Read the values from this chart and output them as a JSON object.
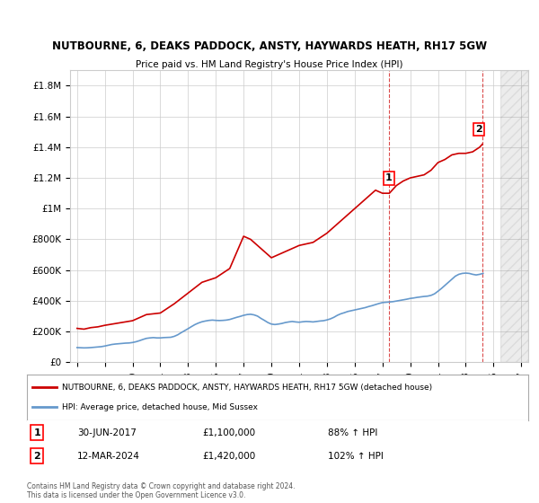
{
  "title1": "NUTBOURNE, 6, DEAKS PADDOCK, ANSTY, HAYWARDS HEATH, RH17 5GW",
  "title2": "Price paid vs. HM Land Registry's House Price Index (HPI)",
  "legend_line1": "NUTBOURNE, 6, DEAKS PADDOCK, ANSTY, HAYWARDS HEATH, RH17 5GW (detached house)",
  "legend_line2": "HPI: Average price, detached house, Mid Sussex",
  "annotation1_label": "1",
  "annotation1_date": "30-JUN-2017",
  "annotation1_value": "£1,100,000",
  "annotation1_pct": "88% ↑ HPI",
  "annotation1_year": 2017.5,
  "annotation1_price": 1100000,
  "annotation2_label": "2",
  "annotation2_date": "12-MAR-2024",
  "annotation2_value": "£1,420,000",
  "annotation2_pct": "102% ↑ HPI",
  "annotation2_year": 2024.2,
  "annotation2_price": 1420000,
  "footer1": "Contains HM Land Registry data © Crown copyright and database right 2024.",
  "footer2": "This data is licensed under the Open Government Licence v3.0.",
  "hpi_color": "#6699cc",
  "price_color": "#cc0000",
  "background_color": "#ffffff",
  "grid_color": "#cccccc",
  "annotation_line_color": "#cc0000",
  "ylim": [
    0,
    1900000
  ],
  "xlim_start": 1994.5,
  "xlim_end": 2027.5,
  "hpi_data": {
    "years": [
      1995,
      1995.25,
      1995.5,
      1995.75,
      1996,
      1996.25,
      1996.5,
      1996.75,
      1997,
      1997.25,
      1997.5,
      1997.75,
      1998,
      1998.25,
      1998.5,
      1998.75,
      1999,
      1999.25,
      1999.5,
      1999.75,
      2000,
      2000.25,
      2000.5,
      2000.75,
      2001,
      2001.25,
      2001.5,
      2001.75,
      2002,
      2002.25,
      2002.5,
      2002.75,
      2003,
      2003.25,
      2003.5,
      2003.75,
      2004,
      2004.25,
      2004.5,
      2004.75,
      2005,
      2005.25,
      2005.5,
      2005.75,
      2006,
      2006.25,
      2006.5,
      2006.75,
      2007,
      2007.25,
      2007.5,
      2007.75,
      2008,
      2008.25,
      2008.5,
      2008.75,
      2009,
      2009.25,
      2009.5,
      2009.75,
      2010,
      2010.25,
      2010.5,
      2010.75,
      2011,
      2011.25,
      2011.5,
      2011.75,
      2012,
      2012.25,
      2012.5,
      2012.75,
      2013,
      2013.25,
      2013.5,
      2013.75,
      2014,
      2014.25,
      2014.5,
      2014.75,
      2015,
      2015.25,
      2015.5,
      2015.75,
      2016,
      2016.25,
      2016.5,
      2016.75,
      2017,
      2017.25,
      2017.5,
      2017.75,
      2018,
      2018.25,
      2018.5,
      2018.75,
      2019,
      2019.25,
      2019.5,
      2019.75,
      2020,
      2020.25,
      2020.5,
      2020.75,
      2021,
      2021.25,
      2021.5,
      2021.75,
      2022,
      2022.25,
      2022.5,
      2022.75,
      2023,
      2023.25,
      2023.5,
      2023.75,
      2024,
      2024.25
    ],
    "values": [
      95000,
      94000,
      93000,
      93500,
      95000,
      97000,
      99000,
      101000,
      105000,
      110000,
      115000,
      118000,
      120000,
      122000,
      124000,
      125000,
      128000,
      133000,
      140000,
      148000,
      155000,
      158000,
      160000,
      158000,
      158000,
      160000,
      161000,
      162000,
      168000,
      178000,
      192000,
      205000,
      218000,
      232000,
      245000,
      255000,
      263000,
      268000,
      272000,
      274000,
      272000,
      271000,
      272000,
      274000,
      278000,
      285000,
      292000,
      298000,
      305000,
      310000,
      312000,
      308000,
      300000,
      285000,
      272000,
      258000,
      248000,
      245000,
      248000,
      252000,
      258000,
      262000,
      265000,
      262000,
      260000,
      263000,
      265000,
      264000,
      262000,
      265000,
      268000,
      270000,
      275000,
      282000,
      292000,
      305000,
      315000,
      322000,
      330000,
      335000,
      340000,
      345000,
      350000,
      355000,
      362000,
      368000,
      375000,
      382000,
      388000,
      390000,
      392000,
      394000,
      398000,
      402000,
      406000,
      410000,
      415000,
      418000,
      422000,
      425000,
      428000,
      430000,
      435000,
      445000,
      462000,
      480000,
      500000,
      520000,
      540000,
      560000,
      572000,
      578000,
      580000,
      578000,
      572000,
      568000,
      572000,
      578000
    ]
  },
  "price_data": {
    "years": [
      1995,
      1995.5,
      1996,
      1996.5,
      1997,
      1998,
      1999,
      2000,
      2001,
      2002,
      2003,
      2004,
      2005,
      2006,
      2007,
      2007.5,
      2008,
      2009,
      2010,
      2011,
      2012,
      2013,
      2014,
      2015,
      2016,
      2016.5,
      2017,
      2017.5,
      2018,
      2018.5,
      2019,
      2019.5,
      2020,
      2020.5,
      2021,
      2021.5,
      2022,
      2022.5,
      2023,
      2023.5,
      2024,
      2024.2
    ],
    "values": [
      220000,
      215000,
      225000,
      230000,
      240000,
      255000,
      270000,
      310000,
      320000,
      380000,
      450000,
      520000,
      550000,
      610000,
      820000,
      800000,
      760000,
      680000,
      720000,
      760000,
      780000,
      840000,
      920000,
      1000000,
      1080000,
      1120000,
      1100000,
      1100000,
      1150000,
      1180000,
      1200000,
      1210000,
      1220000,
      1250000,
      1300000,
      1320000,
      1350000,
      1360000,
      1360000,
      1370000,
      1400000,
      1420000
    ]
  }
}
